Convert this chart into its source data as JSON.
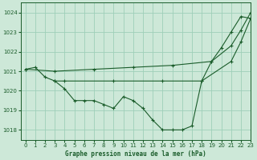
{
  "title": "Graphe pression niveau de la mer (hPa)",
  "background_color": "#cde8d8",
  "grid_color": "#9ecfb8",
  "line_color": "#1a5c2a",
  "xlim": [
    -0.5,
    23
  ],
  "ylim": [
    1017.5,
    1024.5
  ],
  "yticks": [
    1018,
    1019,
    1020,
    1021,
    1022,
    1023,
    1024
  ],
  "xticks": [
    0,
    1,
    2,
    3,
    4,
    5,
    6,
    7,
    8,
    9,
    10,
    11,
    12,
    13,
    14,
    15,
    16,
    17,
    18,
    19,
    20,
    21,
    22,
    23
  ],
  "series1_x": [
    0,
    1,
    2,
    3,
    4,
    5,
    6,
    7,
    8,
    9,
    10,
    11,
    12,
    13,
    14,
    15,
    16,
    17,
    18,
    19,
    20,
    21,
    22,
    23
  ],
  "series1_y": [
    1021.1,
    1021.2,
    1020.7,
    1020.5,
    1020.1,
    1019.5,
    1019.5,
    1019.5,
    1019.3,
    1019.1,
    1019.7,
    1019.5,
    1019.1,
    1018.5,
    1018.0,
    1018.0,
    1018.0,
    1018.2,
    1020.5,
    1021.5,
    1022.2,
    1023.0,
    1023.8,
    1023.7
  ],
  "series2_x": [
    0,
    3,
    7,
    11,
    15,
    19,
    21,
    22,
    23
  ],
  "series2_y": [
    1021.1,
    1021.0,
    1021.1,
    1021.2,
    1021.3,
    1021.5,
    1022.3,
    1023.1,
    1024.0
  ],
  "series3_x": [
    3,
    4,
    9,
    14,
    18,
    21,
    22,
    23
  ],
  "series3_y": [
    1020.5,
    1020.5,
    1020.5,
    1020.5,
    1020.5,
    1021.5,
    1022.5,
    1023.7
  ]
}
